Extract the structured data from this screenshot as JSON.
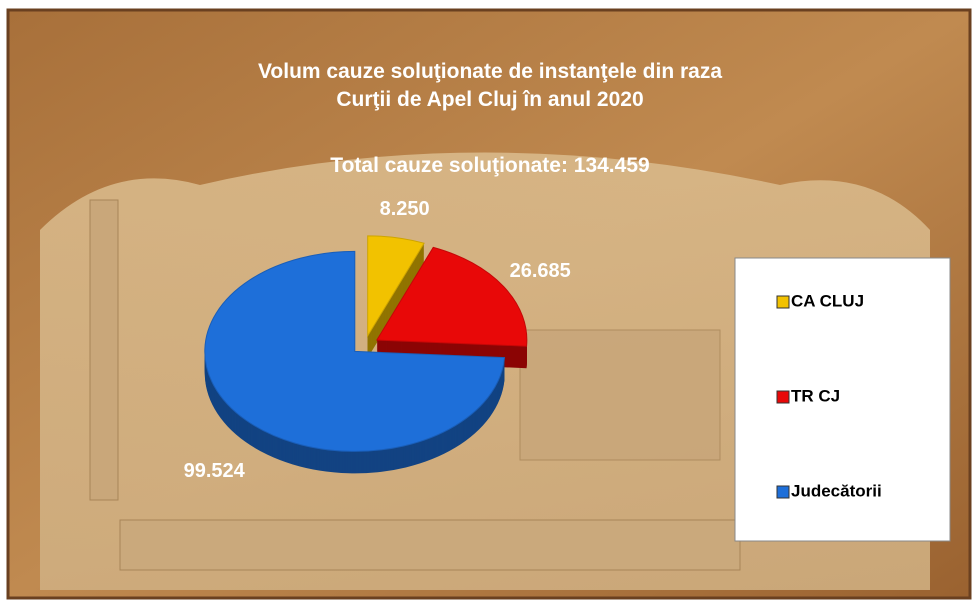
{
  "chart_data": {
    "type": "pie3d",
    "title": [
      "Volum cauze soluţionate de instanţele din raza",
      "Curţii de Apel Cluj în anul 2020"
    ],
    "subtitle": "Total cauze soluţionate: 134.459",
    "categories": [
      "CA CLUJ",
      "TR CJ",
      "Judecătorii"
    ],
    "values": [
      8250,
      26685,
      99524
    ],
    "value_labels": [
      "8.250",
      "26.685",
      "99.524"
    ],
    "colors": [
      "#f2c200",
      "#e80808",
      "#1e6fd9"
    ],
    "legend": "right"
  }
}
